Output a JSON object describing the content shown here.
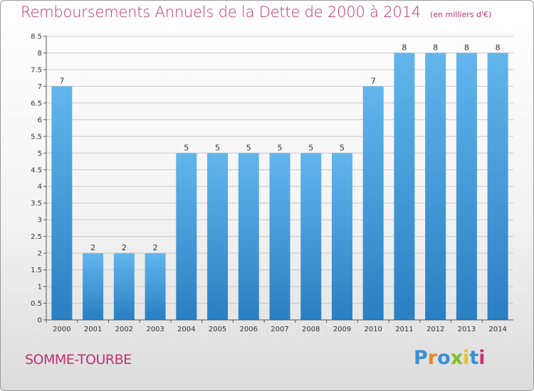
{
  "colors": {
    "accent": "#c0306f",
    "bar_light": "#62b6ec",
    "bar_dark": "#2a7fc2",
    "axis": "#555555",
    "grid": "#c8c8c8"
  },
  "commune": "SOMME-TOURBE",
  "brand": {
    "letters": [
      "P",
      "r",
      "o",
      "x",
      "i",
      "t",
      "i"
    ],
    "letter_colors": [
      "#3a8fd6",
      "#e8872a",
      "#3a8fd6",
      "#7fbf2a",
      "#e8c020",
      "#3a8fd6",
      "#d0307a"
    ]
  },
  "chart_data": {
    "type": "bar",
    "title": "Remboursements Annuels de la Dette de 2000 à 2014",
    "subtitle": "(en milliers d'€)",
    "xlabel": "",
    "ylabel": "",
    "categories": [
      "2000",
      "2001",
      "2002",
      "2003",
      "2004",
      "2005",
      "2006",
      "2007",
      "2008",
      "2009",
      "2010",
      "2011",
      "2012",
      "2013",
      "2014"
    ],
    "values": [
      7,
      2,
      2,
      2,
      5,
      5,
      5,
      5,
      5,
      5,
      7,
      8,
      8,
      8,
      8
    ],
    "data_labels": [
      "7",
      "2",
      "2",
      "2",
      "5",
      "5",
      "5",
      "5",
      "5",
      "5",
      "7",
      "8",
      "8",
      "8",
      "8"
    ],
    "ylim": [
      0,
      8.5
    ],
    "yticks": [
      0,
      0.5,
      1,
      1.5,
      2,
      2.5,
      3,
      3.5,
      4,
      4.5,
      5,
      5.5,
      6,
      6.5,
      7,
      7.5,
      8,
      8.5
    ],
    "ytick_labels": [
      "0",
      "0.5",
      "1",
      "1.5",
      "2",
      "2.5",
      "3",
      "3.5",
      "4",
      "4.5",
      "5",
      "5.5",
      "6",
      "6.5",
      "7",
      "7.5",
      "8",
      "8.5"
    ],
    "grid": true
  }
}
